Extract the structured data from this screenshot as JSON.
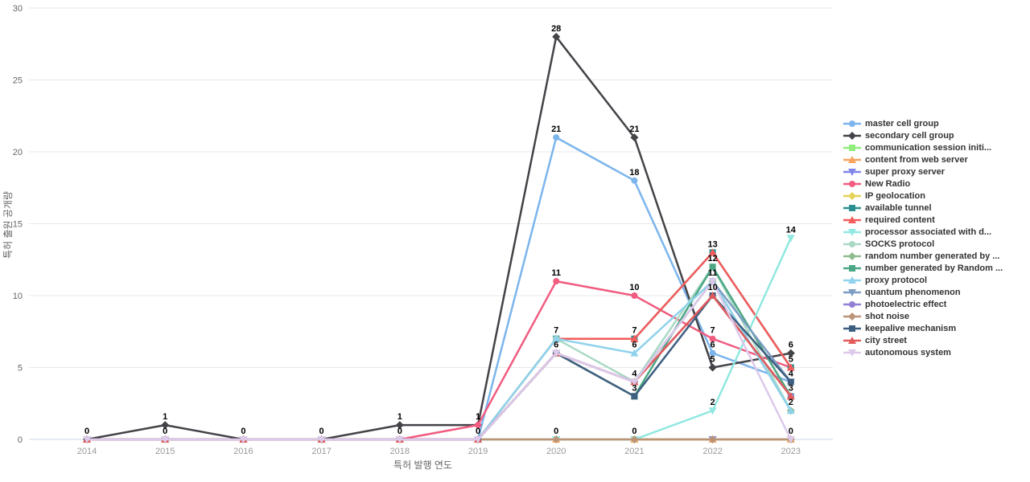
{
  "chart_data": {
    "type": "line",
    "title": "",
    "xlabel": "특허 발행 연도",
    "ylabel": "특허 출원 공개량",
    "x": [
      2014,
      2015,
      2016,
      2017,
      2018,
      2019,
      2020,
      2021,
      2022,
      2023
    ],
    "ylim": [
      0,
      30
    ],
    "yticks": [
      0,
      5,
      10,
      15,
      20,
      25,
      30
    ],
    "grid": "horizontal-only",
    "legend_position": "right",
    "axis_line_color": "#ccd6eb",
    "grid_color": "#e8e8e8",
    "series": [
      {
        "name": "master cell group",
        "color": "#7cb5ec",
        "marker": "circle",
        "values": [
          0,
          0,
          0,
          0,
          0,
          0,
          21,
          18,
          6,
          4
        ]
      },
      {
        "name": "secondary cell group",
        "color": "#434348",
        "marker": "diamond",
        "values": [
          0,
          1,
          0,
          0,
          1,
          1,
          28,
          21,
          5,
          6
        ]
      },
      {
        "name": "communication session initi...",
        "color": "#90ed7d",
        "marker": "square",
        "values": [
          0,
          0,
          0,
          0,
          0,
          0,
          0,
          0,
          0,
          0
        ]
      },
      {
        "name": "content from web server",
        "color": "#f7a35c",
        "marker": "triangle",
        "values": [
          0,
          0,
          0,
          0,
          0,
          0,
          0,
          0,
          0,
          0
        ]
      },
      {
        "name": "super proxy server",
        "color": "#8085e9",
        "marker": "triangle-down",
        "values": [
          0,
          0,
          0,
          0,
          0,
          0,
          0,
          0,
          0,
          0
        ]
      },
      {
        "name": "New Radio",
        "color": "#f15c80",
        "marker": "circle",
        "values": [
          0,
          0,
          0,
          0,
          0,
          1,
          11,
          10,
          7,
          5
        ]
      },
      {
        "name": "IP geolocation",
        "color": "#e4d354",
        "marker": "diamond",
        "values": [
          0,
          0,
          0,
          0,
          0,
          0,
          0,
          0,
          0,
          0
        ]
      },
      {
        "name": "available tunnel",
        "color": "#2b908f",
        "marker": "square",
        "values": [
          0,
          0,
          0,
          0,
          0,
          0,
          7,
          7,
          13,
          5
        ]
      },
      {
        "name": "required content",
        "color": "#f45b5b",
        "marker": "triangle",
        "values": [
          0,
          0,
          0,
          0,
          0,
          0,
          7,
          7,
          13,
          5
        ]
      },
      {
        "name": "processor associated with d...",
        "color": "#91e8e1",
        "marker": "triangle-down",
        "values": [
          0,
          0,
          0,
          0,
          0,
          0,
          0,
          0,
          2,
          14
        ]
      },
      {
        "name": "SOCKS protocol",
        "color": "#a9d9c4",
        "marker": "circle",
        "values": [
          0,
          0,
          0,
          0,
          0,
          0,
          7,
          4,
          12,
          2
        ]
      },
      {
        "name": "random number generated by ...",
        "color": "#8fbc8f",
        "marker": "diamond",
        "values": [
          0,
          0,
          0,
          0,
          0,
          0,
          6,
          4,
          11,
          2
        ]
      },
      {
        "name": "number generated by Random ...",
        "color": "#4ca784",
        "marker": "square",
        "values": [
          0,
          0,
          0,
          0,
          0,
          0,
          6,
          3,
          12,
          3
        ]
      },
      {
        "name": "proxy protocol",
        "color": "#8fd2ec",
        "marker": "triangle",
        "values": [
          0,
          0,
          0,
          0,
          0,
          0,
          7,
          6,
          11,
          2
        ]
      },
      {
        "name": "quantum phenomenon",
        "color": "#7b9dc4",
        "marker": "triangle-down",
        "values": [
          0,
          0,
          0,
          0,
          0,
          0,
          6,
          4,
          11,
          4
        ]
      },
      {
        "name": "photoelectric effect",
        "color": "#9180d4",
        "marker": "circle",
        "values": [
          0,
          0,
          0,
          0,
          0,
          0,
          6,
          4,
          10,
          3
        ]
      },
      {
        "name": "shot noise",
        "color": "#bb9478",
        "marker": "diamond",
        "values": [
          0,
          0,
          0,
          0,
          0,
          0,
          0,
          0,
          0,
          0
        ]
      },
      {
        "name": "keepalive mechanism",
        "color": "#3f5f80",
        "marker": "square",
        "values": [
          0,
          0,
          0,
          0,
          0,
          0,
          6,
          3,
          10,
          4
        ]
      },
      {
        "name": "city street",
        "color": "#e25b5b",
        "marker": "triangle",
        "values": [
          0,
          0,
          0,
          0,
          0,
          0,
          6,
          4,
          10,
          3
        ]
      },
      {
        "name": "autonomous system",
        "color": "#dcc9ea",
        "marker": "triangle-down",
        "values": [
          0,
          0,
          0,
          0,
          0,
          0,
          6,
          4,
          11,
          0
        ]
      }
    ],
    "point_labels": [
      [
        0,
        0
      ],
      [
        1,
        1
      ],
      [
        1,
        0
      ],
      [
        2,
        0
      ],
      [
        3,
        0
      ],
      [
        4,
        1
      ],
      [
        4,
        0
      ],
      [
        5,
        1
      ],
      [
        5,
        0
      ],
      [
        6,
        28
      ],
      [
        6,
        21
      ],
      [
        6,
        11
      ],
      [
        6,
        7
      ],
      [
        6,
        6
      ],
      [
        6,
        0
      ],
      [
        7,
        21
      ],
      [
        7,
        18
      ],
      [
        7,
        10
      ],
      [
        7,
        7
      ],
      [
        7,
        6
      ],
      [
        7,
        4
      ],
      [
        7,
        3
      ],
      [
        7,
        0
      ],
      [
        8,
        13
      ],
      [
        8,
        12
      ],
      [
        8,
        11
      ],
      [
        8,
        10
      ],
      [
        8,
        7
      ],
      [
        8,
        6
      ],
      [
        8,
        5
      ],
      [
        8,
        2
      ],
      [
        9,
        14
      ],
      [
        9,
        6
      ],
      [
        9,
        5
      ],
      [
        9,
        4
      ],
      [
        9,
        3
      ],
      [
        9,
        2
      ],
      [
        9,
        0
      ]
    ]
  }
}
